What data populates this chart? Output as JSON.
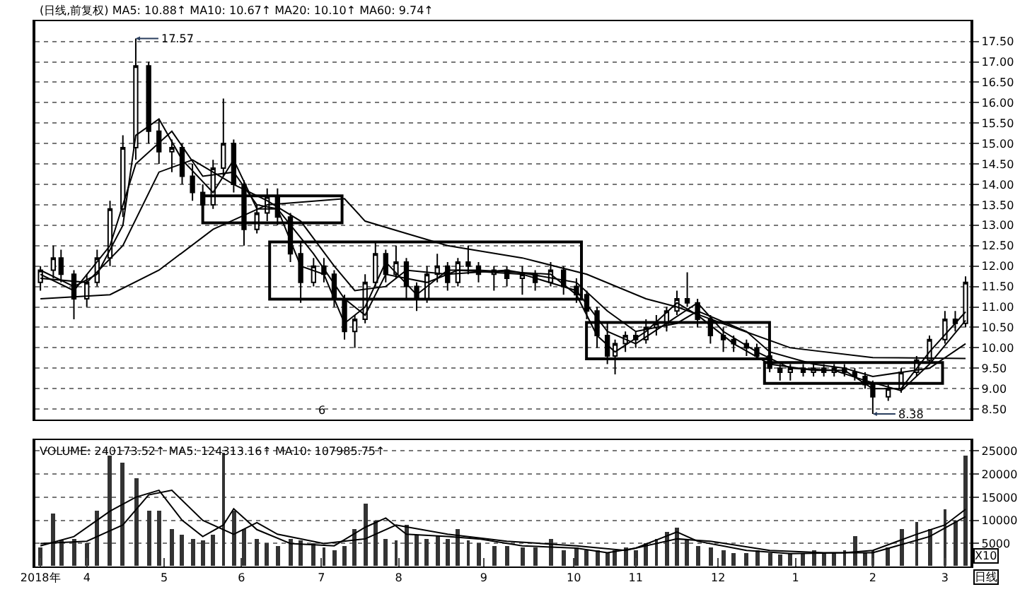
{
  "chart_data": [
    {
      "type": "candlestick",
      "title": "(日线,前复权) MA5: 10.88↑ MA10: 10.67↑ MA20: 10.10↑ MA60: 9.74↑",
      "xlim": [
        "2018-03-13",
        "2019-03-11"
      ],
      "ylim": [
        8.25,
        18.0
      ],
      "yticks": [
        {
          "value": 8.5,
          "label": "8.50"
        },
        {
          "value": 9.0,
          "label": "9.00"
        },
        {
          "value": 9.5,
          "label": "9.50"
        },
        {
          "value": 10.0,
          "label": "10.00"
        },
        {
          "value": 10.5,
          "label": "10.50"
        },
        {
          "value": 11.0,
          "label": "11.00"
        },
        {
          "value": 11.5,
          "label": "11.50"
        },
        {
          "value": 12.0,
          "label": "12.00"
        },
        {
          "value": 12.5,
          "label": "12.50"
        },
        {
          "value": 13.0,
          "label": "13.00"
        },
        {
          "value": 13.5,
          "label": "13.50"
        },
        {
          "value": 14.0,
          "label": "14.00"
        },
        {
          "value": 14.5,
          "label": "14.50"
        },
        {
          "value": 15.0,
          "label": "15.00"
        },
        {
          "value": 15.5,
          "label": "15.50"
        },
        {
          "value": 16.0,
          "label": "16.00"
        },
        {
          "value": 16.5,
          "label": "16.50"
        },
        {
          "value": 17.0,
          "label": "17.00"
        },
        {
          "value": 17.5,
          "label": "17.50"
        }
      ],
      "tick_labels": "y",
      "grid": "y",
      "annotations": [
        {
          "text": "17.57",
          "x": "2018-04-21",
          "y": 17.57
        },
        {
          "text": "8.38",
          "x": "2019-02-01",
          "y": 8.38
        },
        "6"
      ],
      "series": [
        {
          "color": "#000000",
          "x": [
            "2018-03-15",
            "2018-03-20",
            "2018-03-23",
            "2018-03-28",
            "2018-04-02",
            "2018-04-06",
            "2018-04-11",
            "2018-04-16",
            "2018-04-21",
            "2018-04-26",
            "2018-04-30",
            "2018-05-05",
            "2018-05-09",
            "2018-05-13",
            "2018-05-17",
            "2018-05-21",
            "2018-05-25",
            "2018-05-29",
            "2018-06-02",
            "2018-06-07",
            "2018-06-11",
            "2018-06-15",
            "2018-06-20",
            "2018-06-24",
            "2018-06-29",
            "2018-07-03",
            "2018-07-07",
            "2018-07-11",
            "2018-07-15",
            "2018-07-19",
            "2018-07-23",
            "2018-07-27",
            "2018-07-31",
            "2018-08-04",
            "2018-08-08",
            "2018-08-12",
            "2018-08-16",
            "2018-08-20",
            "2018-08-24",
            "2018-08-28",
            "2018-09-01",
            "2018-09-07",
            "2018-09-12",
            "2018-09-18",
            "2018-09-23",
            "2018-09-29",
            "2018-10-04",
            "2018-10-09",
            "2018-10-13",
            "2018-10-17",
            "2018-10-21",
            "2018-10-24",
            "2018-10-28",
            "2018-11-01",
            "2018-11-05",
            "2018-11-09",
            "2018-11-13",
            "2018-11-17",
            "2018-11-21",
            "2018-11-25",
            "2018-11-30",
            "2018-12-05",
            "2018-12-09",
            "2018-12-14",
            "2018-12-18",
            "2018-12-23",
            "2018-12-27",
            "2018-12-31",
            "2019-01-05",
            "2019-01-09",
            "2019-01-13",
            "2019-01-17",
            "2019-01-21",
            "2019-01-25",
            "2019-01-29",
            "2019-02-01",
            "2019-02-07",
            "2019-02-12",
            "2019-02-18",
            "2019-02-23",
            "2019-03-01",
            "2019-03-05",
            "2019-03-09"
          ],
          "ohlc": [
            [
              11.6,
              12.0,
              11.4,
              11.9
            ],
            [
              11.9,
              12.5,
              11.7,
              12.2
            ],
            [
              12.2,
              12.4,
              11.6,
              11.8
            ],
            [
              11.8,
              11.9,
              10.7,
              11.2
            ],
            [
              11.2,
              11.8,
              11.0,
              11.6
            ],
            [
              11.6,
              12.4,
              11.5,
              12.2
            ],
            [
              12.2,
              13.6,
              12.0,
              13.4
            ],
            [
              13.4,
              15.2,
              13.2,
              14.9
            ],
            [
              14.9,
              17.57,
              14.6,
              16.9
            ],
            [
              16.9,
              17.0,
              15.0,
              15.3
            ],
            [
              15.3,
              15.6,
              14.5,
              14.8
            ],
            [
              14.8,
              15.1,
              14.3,
              14.9
            ],
            [
              14.9,
              15.0,
              14.0,
              14.2
            ],
            [
              14.2,
              14.5,
              13.6,
              13.8
            ],
            [
              13.8,
              14.0,
              13.2,
              13.5
            ],
            [
              13.5,
              14.6,
              13.4,
              14.4
            ],
            [
              14.4,
              16.1,
              14.2,
              15.0
            ],
            [
              15.0,
              15.1,
              13.8,
              14.0
            ],
            [
              14.0,
              14.1,
              12.5,
              12.9
            ],
            [
              12.9,
              13.5,
              12.8,
              13.3
            ],
            [
              13.3,
              13.9,
              13.1,
              13.7
            ],
            [
              13.7,
              13.9,
              13.0,
              13.2
            ],
            [
              13.2,
              13.3,
              12.1,
              12.3
            ],
            [
              12.3,
              12.6,
              11.1,
              11.6
            ],
            [
              11.6,
              12.2,
              11.5,
              12.0
            ],
            [
              12.0,
              12.2,
              11.6,
              11.8
            ],
            [
              11.8,
              11.9,
              11.0,
              11.2
            ],
            [
              11.2,
              11.3,
              10.2,
              10.4
            ],
            [
              10.4,
              10.8,
              10.0,
              10.7
            ],
            [
              10.7,
              11.8,
              10.6,
              11.6
            ],
            [
              11.6,
              12.6,
              11.5,
              12.3
            ],
            [
              12.3,
              12.4,
              11.6,
              11.8
            ],
            [
              11.8,
              12.5,
              11.7,
              12.1
            ],
            [
              12.1,
              12.2,
              11.2,
              11.5
            ],
            [
              11.5,
              11.6,
              10.9,
              11.2
            ],
            [
              11.2,
              12.0,
              11.1,
              11.8
            ],
            [
              11.8,
              12.3,
              11.6,
              12.0
            ],
            [
              12.0,
              12.1,
              11.4,
              11.6
            ],
            [
              11.6,
              12.2,
              11.5,
              12.1
            ],
            [
              12.1,
              12.5,
              11.8,
              12.0
            ],
            [
              12.0,
              12.1,
              11.6,
              11.8
            ],
            [
              11.8,
              12.0,
              11.4,
              11.9
            ],
            [
              11.9,
              12.0,
              11.5,
              11.7
            ],
            [
              11.7,
              12.0,
              11.3,
              11.8
            ],
            [
              11.8,
              11.9,
              11.4,
              11.6
            ],
            [
              11.6,
              12.1,
              11.5,
              11.9
            ],
            [
              11.9,
              12.0,
              11.3,
              11.5
            ],
            [
              11.5,
              11.7,
              11.1,
              11.3
            ],
            [
              11.3,
              11.4,
              10.7,
              10.9
            ],
            [
              10.9,
              11.0,
              10.0,
              10.3
            ],
            [
              10.3,
              10.6,
              9.6,
              9.8
            ],
            [
              9.8,
              10.2,
              9.35,
              10.1
            ],
            [
              10.1,
              10.4,
              9.9,
              10.3
            ],
            [
              10.3,
              10.4,
              10.0,
              10.2
            ],
            [
              10.2,
              10.7,
              10.1,
              10.5
            ],
            [
              10.5,
              10.8,
              10.3,
              10.6
            ],
            [
              10.6,
              11.0,
              10.4,
              10.9
            ],
            [
              10.9,
              11.4,
              10.8,
              11.2
            ],
            [
              11.2,
              11.85,
              11.0,
              11.1
            ],
            [
              11.1,
              11.2,
              10.5,
              10.7
            ],
            [
              10.7,
              10.8,
              10.1,
              10.3
            ],
            [
              10.3,
              10.5,
              9.9,
              10.2
            ],
            [
              10.2,
              10.3,
              9.9,
              10.1
            ],
            [
              10.1,
              10.2,
              9.8,
              10.0
            ],
            [
              10.0,
              10.1,
              9.7,
              9.8
            ],
            [
              9.8,
              9.9,
              9.4,
              9.5
            ],
            [
              9.5,
              9.6,
              9.2,
              9.4
            ],
            [
              9.4,
              9.6,
              9.2,
              9.5
            ],
            [
              9.5,
              9.6,
              9.3,
              9.4
            ],
            [
              9.4,
              9.6,
              9.3,
              9.5
            ],
            [
              9.5,
              9.6,
              9.3,
              9.4
            ],
            [
              9.4,
              9.6,
              9.3,
              9.5
            ],
            [
              9.5,
              9.6,
              9.3,
              9.4
            ],
            [
              9.4,
              9.5,
              9.2,
              9.3
            ],
            [
              9.3,
              9.4,
              9.0,
              9.1
            ],
            [
              9.1,
              9.2,
              8.38,
              8.8
            ],
            [
              8.8,
              9.1,
              8.7,
              9.0
            ],
            [
              9.0,
              9.5,
              8.9,
              9.4
            ],
            [
              9.4,
              9.8,
              9.3,
              9.7
            ],
            [
              9.7,
              10.3,
              9.6,
              10.2
            ],
            [
              10.2,
              10.9,
              10.1,
              10.7
            ],
            [
              10.7,
              10.9,
              10.4,
              10.6
            ],
            [
              10.6,
              11.75,
              10.5,
              11.6
            ]
          ]
        },
        {
          "type": "line",
          "color": "#000000",
          "x": [
            "2018-03-15",
            "2018-03-28",
            "2018-04-06",
            "2018-04-16",
            "2018-04-21",
            "2018-04-30",
            "2018-05-09",
            "2018-05-21",
            "2018-05-29",
            "2018-06-07",
            "2018-06-15",
            "2018-06-24",
            "2018-07-03",
            "2018-07-11",
            "2018-07-19",
            "2018-07-27",
            "2018-08-08",
            "2018-08-20",
            "2018-09-01",
            "2018-09-29",
            "2018-10-09",
            "2018-10-17",
            "2018-10-24",
            "2018-11-05",
            "2018-11-17",
            "2018-11-25",
            "2018-12-09",
            "2018-12-23",
            "2019-01-09",
            "2019-01-21",
            "2019-02-01",
            "2019-02-12",
            "2019-02-23",
            "2019-03-09"
          ],
          "values": [
            11.9,
            11.5,
            11.8,
            13.0,
            15.2,
            15.6,
            14.6,
            13.8,
            14.6,
            13.4,
            13.4,
            12.0,
            11.8,
            10.6,
            11.0,
            12.1,
            11.3,
            11.9,
            11.9,
            11.8,
            11.3,
            10.3,
            9.9,
            10.4,
            11.1,
            10.8,
            10.1,
            9.6,
            9.45,
            9.45,
            9.0,
            9.0,
            9.9,
            10.88
          ]
        },
        {
          "type": "line",
          "color": "#000000",
          "x": [
            "2018-03-15",
            "2018-03-28",
            "2018-04-11",
            "2018-04-21",
            "2018-05-05",
            "2018-05-17",
            "2018-05-29",
            "2018-06-07",
            "2018-06-15",
            "2018-06-29",
            "2018-07-11",
            "2018-07-19",
            "2018-07-27",
            "2018-08-12",
            "2018-08-24",
            "2018-09-18",
            "2018-10-09",
            "2018-10-21",
            "2018-11-01",
            "2018-11-13",
            "2018-11-25",
            "2018-12-05",
            "2018-12-18",
            "2018-12-31",
            "2019-01-17",
            "2019-01-29",
            "2019-02-12",
            "2019-02-23",
            "2019-03-09"
          ],
          "values": [
            11.8,
            11.4,
            12.5,
            14.5,
            15.3,
            14.2,
            14.3,
            13.5,
            13.4,
            12.3,
            11.2,
            10.8,
            11.8,
            11.6,
            11.9,
            11.8,
            11.4,
            10.4,
            10.1,
            10.6,
            11.1,
            10.4,
            9.9,
            9.5,
            9.45,
            9.2,
            8.95,
            9.6,
            10.67
          ]
        },
        {
          "type": "line",
          "color": "#000000",
          "x": [
            "2018-03-15",
            "2018-04-02",
            "2018-04-16",
            "2018-04-30",
            "2018-05-13",
            "2018-05-29",
            "2018-06-11",
            "2018-06-24",
            "2018-07-07",
            "2018-07-15",
            "2018-07-27",
            "2018-08-04",
            "2018-08-20",
            "2018-09-12",
            "2018-10-09",
            "2018-10-21",
            "2018-11-01",
            "2018-11-17",
            "2018-11-25",
            "2018-12-14",
            "2018-12-23",
            "2019-01-09",
            "2019-01-21",
            "2019-02-01",
            "2019-02-23",
            "2019-03-09"
          ],
          "values": [
            11.7,
            11.6,
            12.5,
            14.3,
            14.6,
            14.0,
            13.6,
            13.1,
            12.0,
            11.4,
            11.5,
            11.9,
            11.8,
            11.9,
            11.6,
            10.9,
            10.4,
            10.6,
            10.9,
            10.4,
            9.9,
            9.6,
            9.5,
            9.3,
            9.5,
            10.1
          ]
        },
        {
          "type": "line",
          "color": "#000000",
          "x": [
            "2018-03-15",
            "2018-04-11",
            "2018-04-30",
            "2018-05-21",
            "2018-06-11",
            "2018-07-11",
            "2018-07-19",
            "2018-08-04",
            "2018-08-20",
            "2018-09-18",
            "2018-10-13",
            "2018-11-05",
            "2018-11-17",
            "2018-12-09",
            "2018-12-31",
            "2019-02-01",
            "2019-03-09"
          ],
          "values": [
            11.2,
            11.3,
            11.9,
            12.9,
            13.5,
            13.65,
            13.1,
            12.8,
            12.5,
            12.2,
            11.8,
            11.2,
            11.0,
            10.5,
            10.0,
            9.76,
            9.74
          ]
        }
      ]
    },
    {
      "type": "bar",
      "title": "VOLUME: 240173.52↑ MA5: 124313.16↑ MA10: 107985.75↑",
      "xlim": [
        "2018-03-13",
        "2019-03-11"
      ],
      "ylim": [
        0,
        27300
      ],
      "xticks": [
        {
          "value": "2018-03-15",
          "label": "2018年"
        },
        {
          "value": "2018-04-02",
          "label": "4"
        },
        {
          "value": "2018-05-02",
          "label": "5"
        },
        {
          "value": "2018-06-01",
          "label": "6"
        },
        {
          "value": "2018-07-02",
          "label": "7"
        },
        {
          "value": "2018-08-01",
          "label": "8"
        },
        {
          "value": "2018-09-03",
          "label": "9"
        },
        {
          "value": "2018-10-08",
          "label": "10"
        },
        {
          "value": "2018-11-01",
          "label": "11"
        },
        {
          "value": "2018-12-03",
          "label": "12"
        },
        {
          "value": "2019-01-02",
          "label": "1"
        },
        {
          "value": "2019-02-01",
          "label": "2"
        },
        {
          "value": "2019-03-01",
          "label": "3"
        }
      ],
      "yticks": [
        5000,
        10000,
        15000,
        20000,
        25000
      ],
      "grid": "y",
      "annotations": [
        "X10",
        "日线"
      ],
      "series": [
        {
          "color": "#333333",
          "x": [
            "2018-03-15",
            "2018-03-20",
            "2018-03-23",
            "2018-03-28",
            "2018-04-02",
            "2018-04-06",
            "2018-04-11",
            "2018-04-16",
            "2018-04-21",
            "2018-04-26",
            "2018-04-30",
            "2018-05-05",
            "2018-05-09",
            "2018-05-13",
            "2018-05-17",
            "2018-05-21",
            "2018-05-25",
            "2018-05-29",
            "2018-06-02",
            "2018-06-07",
            "2018-06-11",
            "2018-06-15",
            "2018-06-20",
            "2018-06-24",
            "2018-06-29",
            "2018-07-03",
            "2018-07-07",
            "2018-07-11",
            "2018-07-15",
            "2018-07-19",
            "2018-07-23",
            "2018-07-27",
            "2018-07-31",
            "2018-08-04",
            "2018-08-08",
            "2018-08-12",
            "2018-08-16",
            "2018-08-20",
            "2018-08-24",
            "2018-08-28",
            "2018-09-01",
            "2018-09-07",
            "2018-09-12",
            "2018-09-18",
            "2018-09-23",
            "2018-09-29",
            "2018-10-04",
            "2018-10-09",
            "2018-10-13",
            "2018-10-17",
            "2018-10-21",
            "2018-10-24",
            "2018-10-28",
            "2018-11-01",
            "2018-11-05",
            "2018-11-09",
            "2018-11-13",
            "2018-11-17",
            "2018-11-21",
            "2018-11-25",
            "2018-11-30",
            "2018-12-05",
            "2018-12-09",
            "2018-12-14",
            "2018-12-18",
            "2018-12-23",
            "2018-12-27",
            "2018-12-31",
            "2019-01-05",
            "2019-01-09",
            "2019-01-13",
            "2019-01-17",
            "2019-01-21",
            "2019-01-25",
            "2019-01-29",
            "2019-02-01",
            "2019-02-07",
            "2019-02-12",
            "2019-02-18",
            "2019-02-23",
            "2019-03-01",
            "2019-03-05",
            "2019-03-09"
          ],
          "values": [
            4000,
            11500,
            5500,
            6000,
            5000,
            12000,
            24000,
            22500,
            19000,
            12000,
            12000,
            8000,
            7000,
            6000,
            5500,
            7000,
            24500,
            12000,
            8000,
            6000,
            5000,
            4500,
            6000,
            5500,
            5000,
            4000,
            3500,
            4500,
            8000,
            13500,
            10000,
            6000,
            5500,
            9000,
            7000,
            6000,
            6500,
            6000,
            8000,
            5500,
            5000,
            4500,
            4500,
            4000,
            4000,
            6000,
            3500,
            4000,
            3500,
            3500,
            3000,
            3500,
            4000,
            3500,
            5000,
            6000,
            7500,
            8500,
            6000,
            4500,
            4000,
            3500,
            3000,
            3000,
            3500,
            3000,
            2500,
            3000,
            3000,
            3500,
            3000,
            3000,
            3500,
            6500,
            3000,
            3500,
            4000,
            8000,
            9500,
            8000,
            12500,
            10000,
            24000
          ]
        },
        {
          "type": "line",
          "color": "#000000",
          "x": [
            "2018-03-15",
            "2018-03-28",
            "2018-04-11",
            "2018-04-21",
            "2018-04-30",
            "2018-05-09",
            "2018-05-17",
            "2018-05-25",
            "2018-05-29",
            "2018-06-07",
            "2018-06-20",
            "2018-07-07",
            "2018-07-19",
            "2018-07-27",
            "2018-08-04",
            "2018-08-20",
            "2018-09-01",
            "2018-09-18",
            "2018-10-09",
            "2018-10-21",
            "2018-11-01",
            "2018-11-17",
            "2018-11-25",
            "2018-12-14",
            "2018-12-31",
            "2019-01-21",
            "2019-02-01",
            "2019-02-18",
            "2019-03-01",
            "2019-03-09"
          ],
          "values": [
            4500,
            6500,
            12000,
            15000,
            16500,
            10000,
            6500,
            9000,
            12500,
            8000,
            5000,
            4500,
            8500,
            10500,
            7000,
            6500,
            6000,
            4500,
            4000,
            3000,
            4000,
            7500,
            5500,
            3500,
            2800,
            3000,
            3500,
            7000,
            9000,
            12400
          ]
        },
        {
          "type": "line",
          "color": "#000000",
          "x": [
            "2018-03-15",
            "2018-04-02",
            "2018-04-16",
            "2018-04-26",
            "2018-05-05",
            "2018-05-17",
            "2018-05-29",
            "2018-06-07",
            "2018-06-15",
            "2018-07-03",
            "2018-07-19",
            "2018-07-31",
            "2018-08-20",
            "2018-09-12",
            "2018-10-09",
            "2018-10-28",
            "2018-11-17",
            "2018-11-30",
            "2018-12-23",
            "2019-01-13",
            "2019-02-01",
            "2019-02-23",
            "2019-03-09"
          ],
          "values": [
            5000,
            5500,
            9000,
            15500,
            16500,
            10000,
            7000,
            9500,
            7000,
            5000,
            6000,
            9000,
            7000,
            5500,
            4500,
            3500,
            6000,
            5500,
            3500,
            3000,
            3000,
            6500,
            10800
          ]
        }
      ]
    }
  ]
}
